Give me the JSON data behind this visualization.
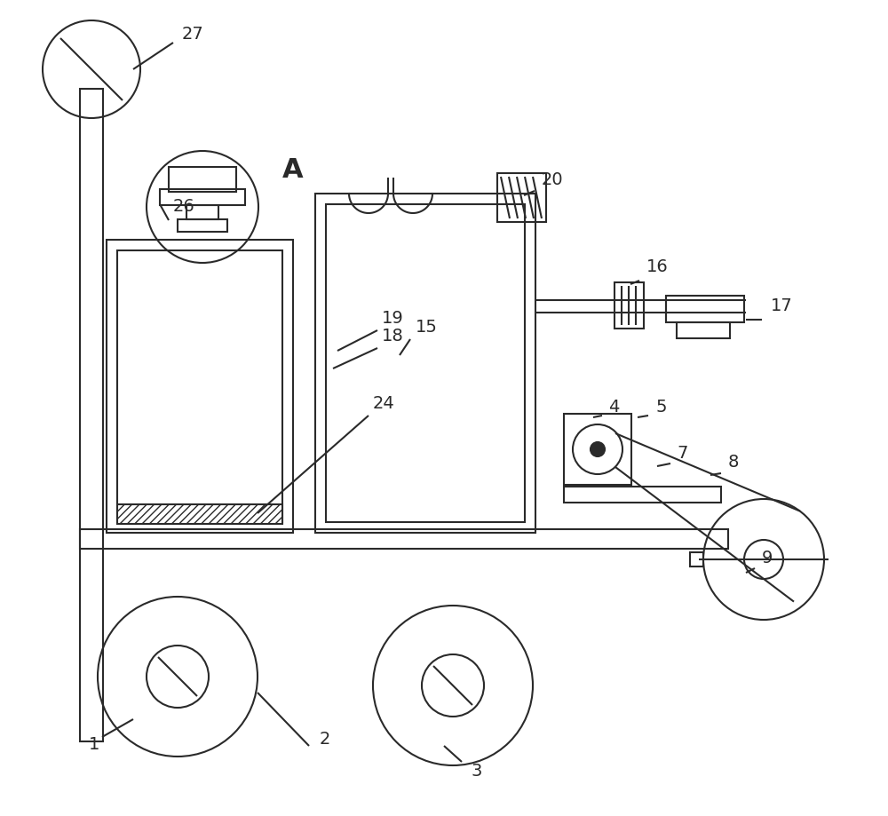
{
  "bg_color": "#ffffff",
  "line_color": "#2a2a2a",
  "lw": 1.5,
  "label_fontsize": 14
}
